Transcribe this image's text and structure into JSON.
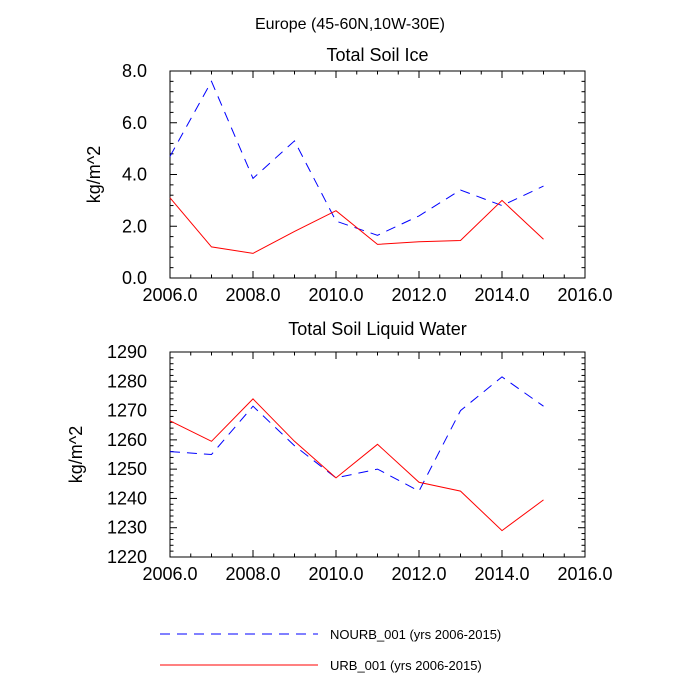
{
  "main_title": "Europe (45-60N,10W-30E)",
  "legend": [
    {
      "key": "nourb",
      "label": "NOURB_001 (yrs 2006-2015)",
      "color": "#0000ff",
      "dash": "dashed"
    },
    {
      "key": "urb",
      "label": "URB_001 (yrs 2006-2015)",
      "color": "#ff0000",
      "dash": "solid"
    }
  ],
  "chart_data": [
    {
      "type": "line",
      "title": "Total Soil Ice",
      "xlabel": "",
      "ylabel": "kg/m^2",
      "xlim": [
        2006,
        2016
      ],
      "ylim": [
        0,
        8
      ],
      "xticks": [
        2006,
        2008,
        2010,
        2012,
        2014,
        2016
      ],
      "xtick_labels": [
        "2006.0",
        "2008.0",
        "2010.0",
        "2012.0",
        "2014.0",
        "2016.0"
      ],
      "yticks": [
        0,
        2,
        4,
        6,
        8
      ],
      "ytick_labels": [
        "0.0",
        "2.0",
        "4.0",
        "6.0",
        "8.0"
      ],
      "x": [
        2006,
        2007,
        2008,
        2009,
        2010,
        2011,
        2012,
        2013,
        2014,
        2015
      ],
      "series": [
        {
          "name": "NOURB_001 (yrs 2006-2015)",
          "color": "#0000ff",
          "dash": "dashed",
          "values": [
            4.7,
            7.6,
            3.85,
            5.3,
            2.2,
            1.65,
            2.4,
            3.4,
            2.8,
            3.55
          ]
        },
        {
          "name": "URB_001 (yrs 2006-2015)",
          "color": "#ff0000",
          "dash": "solid",
          "values": [
            3.1,
            1.2,
            0.95,
            1.8,
            2.6,
            1.3,
            1.4,
            1.45,
            3.0,
            1.5
          ]
        }
      ]
    },
    {
      "type": "line",
      "title": "Total Soil Liquid Water",
      "xlabel": "",
      "ylabel": "kg/m^2",
      "xlim": [
        2006,
        2016
      ],
      "ylim": [
        1220,
        1290
      ],
      "xticks": [
        2006,
        2008,
        2010,
        2012,
        2014,
        2016
      ],
      "xtick_labels": [
        "2006.0",
        "2008.0",
        "2010.0",
        "2012.0",
        "2014.0",
        "2016.0"
      ],
      "yticks": [
        1220,
        1230,
        1240,
        1250,
        1260,
        1270,
        1280,
        1290
      ],
      "ytick_labels": [
        "1220",
        "1230",
        "1240",
        "1250",
        "1260",
        "1270",
        "1280",
        "1290"
      ],
      "x": [
        2006,
        2007,
        2008,
        2009,
        2010,
        2011,
        2012,
        2013,
        2014,
        2015
      ],
      "series": [
        {
          "name": "NOURB_001 (yrs 2006-2015)",
          "color": "#0000ff",
          "dash": "dashed",
          "values": [
            1256,
            1255,
            1271.5,
            1258,
            1247,
            1250,
            1242.5,
            1270,
            1281.5,
            1271.5
          ]
        },
        {
          "name": "URB_001 (yrs 2006-2015)",
          "color": "#ff0000",
          "dash": "solid",
          "values": [
            1266.5,
            1259.5,
            1274,
            1259.5,
            1247,
            1258.5,
            1245.5,
            1242.5,
            1229,
            1239.5
          ]
        }
      ]
    }
  ]
}
